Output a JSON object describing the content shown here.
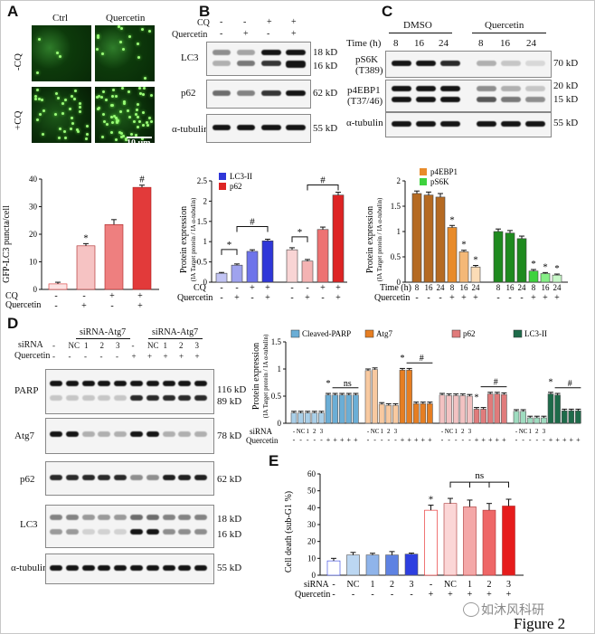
{
  "panels": {
    "A": "A",
    "B": "B",
    "C": "C",
    "D": "D",
    "E": "E"
  },
  "figure_label": "Figure 2",
  "watermark": "如沐风科研",
  "panelA": {
    "col_labels": [
      "Ctrl",
      "Quercetin"
    ],
    "row_labels": [
      "-CQ",
      "+CQ"
    ],
    "scale_bar": "10 μm"
  },
  "panelB": {
    "cq_label": "CQ",
    "quercetin_label": "Quercetin",
    "cq_values": [
      "-",
      "-",
      "+",
      "+"
    ],
    "quercetin_values": [
      "-",
      "+",
      "-",
      "+"
    ],
    "blots": [
      "LC3",
      "p62",
      "α-tubulin"
    ],
    "kd": [
      "18 kD",
      "16 kD",
      "62 kD",
      "55 kD"
    ]
  },
  "panelC": {
    "groups": [
      "DMSO",
      "Quercetin"
    ],
    "time_label": "Time (h)",
    "times": [
      "8",
      "16",
      "24",
      "8",
      "16",
      "24"
    ],
    "blots": [
      "pS6K",
      "(T389)",
      "p4EBP1",
      "(T37/46)",
      "α-tubulin"
    ],
    "kd": [
      "70 kD",
      "20 kD",
      "15 kD",
      "55 kD"
    ]
  },
  "panelD": {
    "header": [
      "siRNA-Atg7",
      "siRNA-Atg7"
    ],
    "sirna_label": "siRNA",
    "quercetin_label": "Quercetin",
    "sirna_values": [
      "-",
      "NC",
      "1",
      "2",
      "3",
      "-",
      "NC",
      "1",
      "2",
      "3"
    ],
    "quercetin_values": [
      "-",
      "-",
      "-",
      "-",
      "-",
      "+",
      "+",
      "+",
      "+",
      "+"
    ],
    "blots": [
      "PARP",
      "Atg7",
      "p62",
      "LC3",
      "α-tubulin"
    ],
    "kd": [
      "116 kD",
      "89 kD",
      "78 kD",
      "62 kD",
      "18 kD",
      "16 kD",
      "55 kD"
    ]
  },
  "charts": {
    "puncta": {
      "ylabel": "GFP-LC3 puncta/cell",
      "row_labels": [
        "CQ",
        "Quercetin"
      ],
      "cq": [
        "-",
        "-",
        "+",
        "+"
      ],
      "quercetin": [
        "-",
        "+",
        "-",
        "+"
      ],
      "sig": [
        "",
        "*",
        "",
        "#"
      ]
    },
    "B_quant": {
      "ylabel": "Protein expression",
      "ylabel2": "(IA Target protein / IA α-tubulin)",
      "legend": [
        "LC3-II",
        "p62"
      ],
      "row_labels": [
        "CQ",
        "Quercetin"
      ],
      "cq": [
        "-",
        "-",
        "+",
        "+",
        "-",
        "-",
        "+",
        "+"
      ],
      "quercetin": [
        "-",
        "+",
        "-",
        "+",
        "-",
        "+",
        "-",
        "+"
      ],
      "sig": [
        "*",
        "#",
        "*",
        "#"
      ]
    },
    "C_quant": {
      "ylabel": "Protein expression",
      "ylabel2": "(IA Target protein / IA α-tubulin)",
      "legend": [
        "p4EBP1",
        "pS6K"
      ],
      "row_labels": [
        "Time (h)",
        "Quercetin"
      ],
      "time": [
        "8",
        "16",
        "24",
        "8",
        "16",
        "24",
        "8",
        "16",
        "24",
        "8",
        "16",
        "24"
      ],
      "quercetin": [
        "-",
        "-",
        "-",
        "+",
        "+",
        "+",
        "-",
        "-",
        "-",
        "+",
        "+",
        "+"
      ],
      "sig": "*"
    },
    "D_quant": {
      "ylabel": "Protein expression",
      "ylabel2": "(IA Target protein / IA α-tubulin)",
      "legend": [
        "Cleaved-PARP",
        "Atg7",
        "p62",
        "LC3-II"
      ],
      "row_labels": [
        "siRNA",
        "Quercetin"
      ],
      "sirna": [
        "-",
        "NC",
        "1",
        "2",
        "3"
      ],
      "sig": [
        "*",
        "ns",
        "*",
        "#",
        "*",
        "#",
        "*",
        "#"
      ]
    },
    "E": {
      "ylabel": "Cell death (sub-G1 %)",
      "row_labels": [
        "siRNA",
        "Quercetin"
      ],
      "sirna": [
        "-",
        "NC",
        "1",
        "2",
        "3",
        "-",
        "NC",
        "1",
        "2",
        "3"
      ],
      "quercetin": [
        "-",
        "-",
        "-",
        "-",
        "-",
        "+",
        "+",
        "+",
        "+",
        "+"
      ],
      "sig": [
        "*",
        "ns"
      ]
    }
  },
  "chart_data": [
    {
      "type": "bar",
      "id": "A-quant",
      "categories": [
        "1",
        "2",
        "3",
        "4"
      ],
      "values": [
        2,
        15.8,
        23.5,
        37
      ],
      "errors": [
        0.6,
        0.8,
        1.8,
        0.8
      ],
      "colors": [
        "#fbe3e3",
        "#f6c3c3",
        "#ee7f7f",
        "#e23a3a"
      ],
      "ylabel": "GFP-LC3 puncta/cell",
      "ylim": [
        0,
        40
      ],
      "yticks": [
        0,
        10,
        20,
        30,
        40
      ]
    },
    {
      "type": "bar",
      "id": "B-quant",
      "series": [
        {
          "name": "LC3-II",
          "values": [
            0.22,
            0.42,
            0.76,
            1.02
          ],
          "colors": [
            "#c2c4f4",
            "#9fa3ee",
            "#6e74ea",
            "#2f37d8"
          ]
        },
        {
          "name": "p62",
          "values": [
            0.8,
            0.52,
            1.3,
            2.15
          ],
          "colors": [
            "#f8d4d4",
            "#f4b3b3",
            "#ed7272",
            "#dd2424"
          ]
        }
      ],
      "errors": [
        0.02,
        0.03,
        0.04,
        0.04,
        0.05,
        0.04,
        0.06,
        0.07
      ],
      "ylim": [
        0,
        2.5
      ],
      "yticks": [
        0,
        0.5,
        1.0,
        1.5,
        2.0,
        2.5
      ],
      "ylabel": "Protein expression"
    },
    {
      "type": "bar",
      "id": "C-quant",
      "series": [
        {
          "name": "p4EBP1",
          "values": [
            1.75,
            1.72,
            1.68,
            1.08,
            0.6,
            0.3
          ],
          "colors": [
            "#b56a22",
            "#b56a22",
            "#b56a22",
            "#e88b2a",
            "#f4b877",
            "#fbdcb6"
          ]
        },
        {
          "name": "pS6K",
          "values": [
            1.0,
            0.97,
            0.86,
            0.22,
            0.17,
            0.14
          ],
          "colors": [
            "#1f8a1f",
            "#1f8a1f",
            "#1f8a1f",
            "#3ed23e",
            "#86ef86",
            "#c8f7c8"
          ]
        }
      ],
      "errors": [
        0.05,
        0.06,
        0.07,
        0.04,
        0.03,
        0.03,
        0.05,
        0.05,
        0.05,
        0.03,
        0.02,
        0.02
      ],
      "ylim": [
        0,
        2.0
      ],
      "yticks": [
        0,
        0.5,
        1.0,
        1.5,
        2.0
      ],
      "ylabel": "Protein expression"
    },
    {
      "type": "bar",
      "id": "D-quant",
      "series": [
        {
          "name": "Cleaved-PARP",
          "values": [
            0.19,
            0.19,
            0.19,
            0.19,
            0.19,
            0.52,
            0.52,
            0.52,
            0.52,
            0.52
          ]
        },
        {
          "name": "Atg7",
          "values": [
            0.97,
            0.99,
            0.35,
            0.33,
            0.33,
            0.98,
            0.98,
            0.36,
            0.36,
            0.36
          ]
        },
        {
          "name": "p62",
          "values": [
            0.52,
            0.51,
            0.51,
            0.51,
            0.5,
            0.26,
            0.26,
            0.54,
            0.54,
            0.53
          ]
        },
        {
          "name": "LC3-II",
          "values": [
            0.22,
            0.22,
            0.1,
            0.1,
            0.1,
            0.54,
            0.52,
            0.23,
            0.23,
            0.23
          ]
        }
      ],
      "ylim": [
        0,
        1.5
      ],
      "yticks": [
        0,
        0.5,
        1.0,
        1.5
      ],
      "ylabel": "Protein expression"
    },
    {
      "type": "bar",
      "id": "E",
      "categories": [
        "-",
        "NC",
        "1",
        "2",
        "3",
        "-",
        "NC",
        "1",
        "2",
        "3"
      ],
      "values": [
        8.5,
        12,
        12,
        12,
        12.5,
        38.5,
        42.5,
        40.5,
        38.5,
        41
      ],
      "errors": [
        1.5,
        1.5,
        1,
        2,
        0.6,
        3,
        3,
        4,
        4,
        4
      ],
      "ylim": [
        0,
        60
      ],
      "yticks": [
        0,
        10,
        20,
        30,
        40,
        50,
        60
      ],
      "ylabel": "Cell death (sub-G1 %)"
    }
  ]
}
